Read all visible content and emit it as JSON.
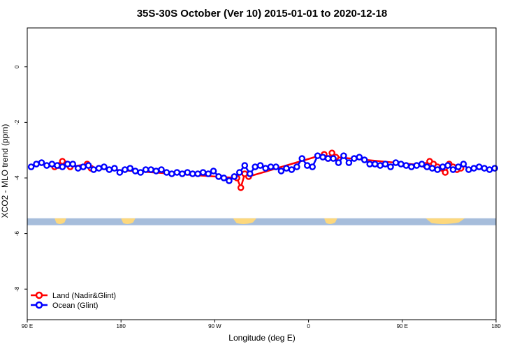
{
  "chart_data": {
    "type": "line",
    "title": "35S-30S October (Ver 10)   2015-01-01 to 2020-12-18",
    "xlabel": "Longitude (deg E)",
    "ylabel": "XCO2 - MLO trend (ppm)",
    "xlim": [
      90,
      450
    ],
    "ylim": [
      -9.1,
      1.4
    ],
    "x_ticks": [
      {
        "value": 90,
        "label": "90 E"
      },
      {
        "value": 162,
        "label": "180"
      },
      {
        "value": 234,
        "label": "90 W"
      },
      {
        "value": 306,
        "label": "0"
      },
      {
        "value": 378,
        "label": "90 E"
      },
      {
        "value": 450,
        "label": "180"
      }
    ],
    "y_ticks": [
      {
        "value": 0,
        "label": "0"
      },
      {
        "value": -2,
        "label": "-2"
      },
      {
        "value": -4,
        "label": "-4"
      },
      {
        "value": -6,
        "label": "-6"
      },
      {
        "value": -8,
        "label": "-8"
      }
    ],
    "legend_position": "bottom-left",
    "land_ocean_strip": {
      "y_range": [
        -5.45,
        -5.7
      ],
      "ocean_color": "#a6bddb",
      "land_color": "#fdd87d",
      "land_segments": [
        [
          111,
          120
        ],
        [
          162,
          173
        ],
        [
          248,
          266
        ],
        [
          318,
          328
        ],
        [
          396,
          426
        ]
      ]
    },
    "series": [
      {
        "name": "Land (Nadir&Glint)",
        "color": "#ff0000",
        "x": [
          111,
          114,
          117,
          120,
          123,
          136,
          139,
          251,
          254,
          257,
          260,
          318,
          321,
          324,
          327,
          396,
          399,
          402,
          405,
          408,
          411,
          414,
          417,
          420,
          423
        ],
        "y": [
          -3.6,
          -3.55,
          -3.4,
          -3.5,
          -3.6,
          -3.5,
          -3.65,
          -4.0,
          -4.35,
          -3.85,
          -3.95,
          -3.15,
          -3.3,
          -3.1,
          -3.25,
          -3.55,
          -3.4,
          -3.5,
          -3.6,
          -3.65,
          -3.8,
          -3.5,
          -3.6,
          -3.7,
          -3.65
        ]
      },
      {
        "name": "Ocean (Glint)",
        "color": "#0000ff",
        "x": [
          93,
          97,
          101,
          105,
          109,
          113,
          117,
          121,
          125,
          129,
          133,
          137,
          141,
          145,
          149,
          153,
          157,
          161,
          165,
          169,
          173,
          177,
          181,
          185,
          189,
          193,
          197,
          201,
          205,
          209,
          213,
          217,
          221,
          225,
          229,
          233,
          237,
          241,
          245,
          249,
          253,
          257,
          261,
          265,
          269,
          273,
          277,
          281,
          285,
          289,
          293,
          297,
          301,
          305,
          309,
          313,
          317,
          321,
          325,
          329,
          333,
          337,
          341,
          345,
          349,
          353,
          357,
          361,
          365,
          369,
          373,
          377,
          381,
          385,
          389,
          393,
          397,
          401,
          405,
          409,
          413,
          417,
          421,
          425,
          429,
          433,
          437,
          441,
          445,
          449
        ],
        "y": [
          -3.6,
          -3.5,
          -3.45,
          -3.55,
          -3.5,
          -3.55,
          -3.6,
          -3.5,
          -3.5,
          -3.65,
          -3.6,
          -3.55,
          -3.7,
          -3.65,
          -3.6,
          -3.7,
          -3.65,
          -3.8,
          -3.7,
          -3.65,
          -3.75,
          -3.8,
          -3.7,
          -3.7,
          -3.75,
          -3.7,
          -3.8,
          -3.85,
          -3.8,
          -3.85,
          -3.8,
          -3.85,
          -3.85,
          -3.8,
          -3.85,
          -3.75,
          -3.95,
          -4.0,
          -4.1,
          -3.95,
          -3.8,
          -3.55,
          -3.85,
          -3.6,
          -3.55,
          -3.65,
          -3.6,
          -3.6,
          -3.75,
          -3.65,
          -3.7,
          -3.6,
          -3.3,
          -3.55,
          -3.6,
          -3.2,
          -3.25,
          -3.3,
          -3.3,
          -3.45,
          -3.2,
          -3.45,
          -3.3,
          -3.25,
          -3.35,
          -3.5,
          -3.5,
          -3.55,
          -3.5,
          -3.6,
          -3.45,
          -3.5,
          -3.55,
          -3.6,
          -3.55,
          -3.5,
          -3.6,
          -3.65,
          -3.7,
          -3.6,
          -3.55,
          -3.7,
          -3.6,
          -3.5,
          -3.7,
          -3.65,
          -3.6,
          -3.65,
          -3.7,
          -3.65
        ]
      }
    ]
  }
}
